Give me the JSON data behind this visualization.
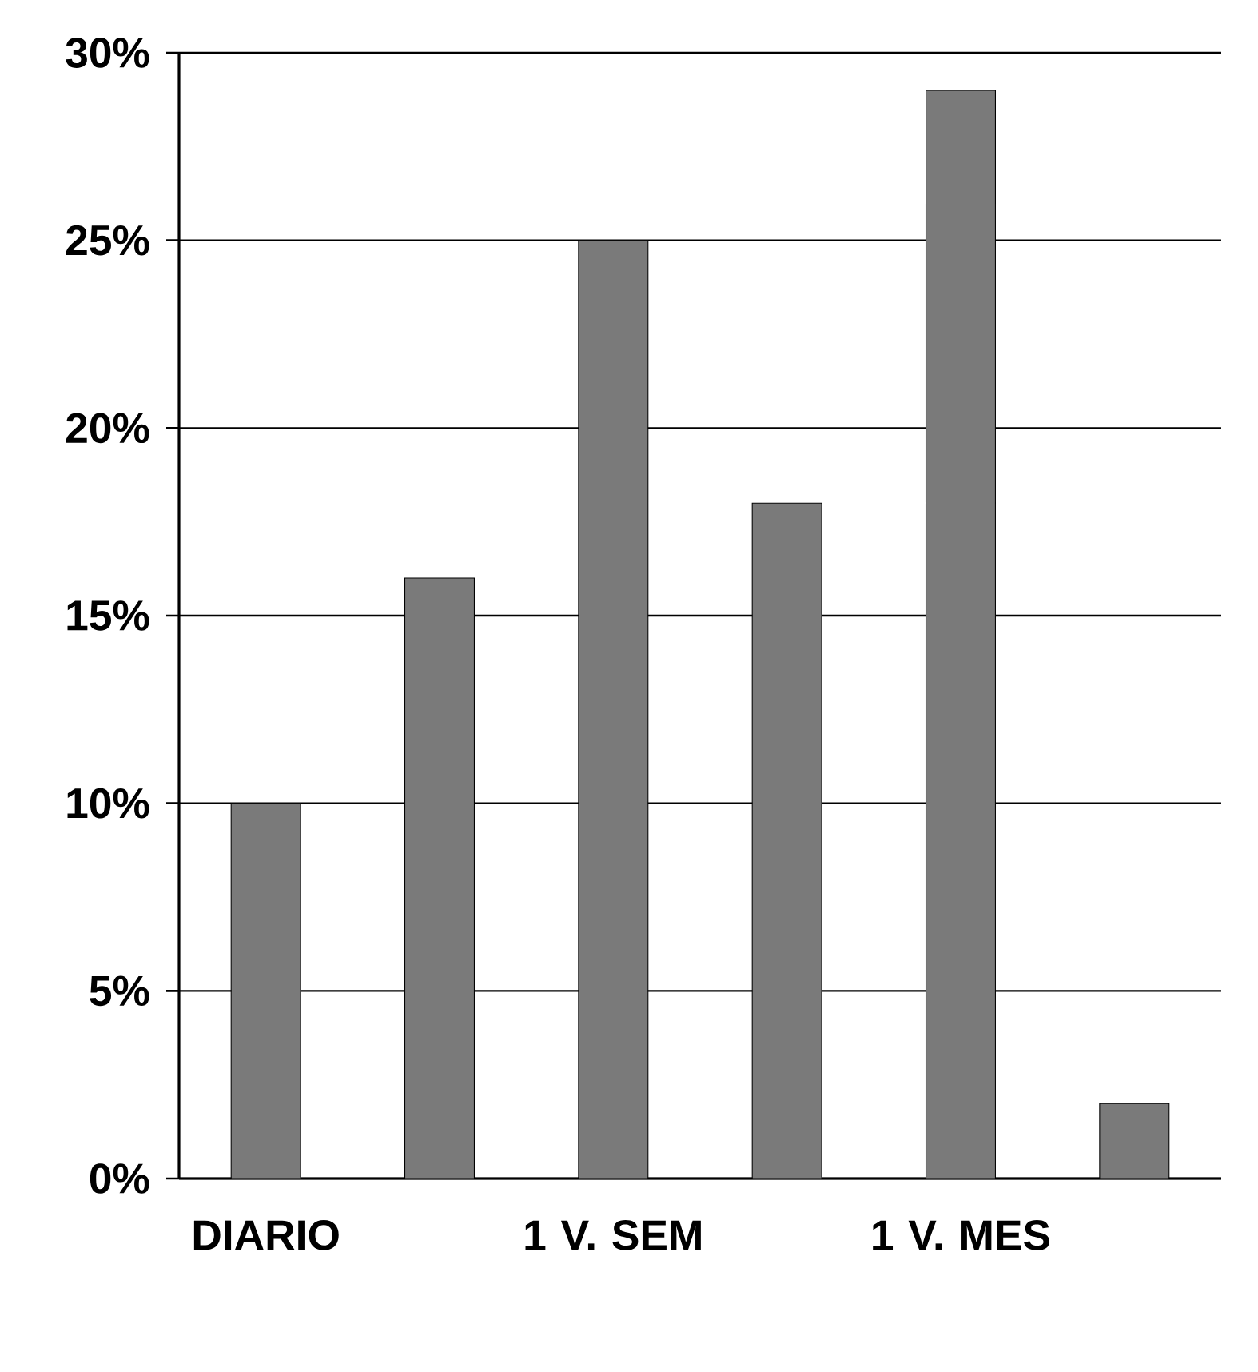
{
  "chart_data": {
    "type": "bar",
    "categories": [
      "DIARIO",
      null,
      "1 V. SEM",
      null,
      "1 V. MES",
      null
    ],
    "values": [
      10,
      16,
      25,
      18,
      29,
      2
    ],
    "color": "#7a7a7a",
    "ylim": [
      0,
      30
    ],
    "yticks": [
      {
        "value": 0,
        "label": "0%"
      },
      {
        "value": 5,
        "label": "5%"
      },
      {
        "value": 10,
        "label": "10%"
      },
      {
        "value": 15,
        "label": "15%"
      },
      {
        "value": 20,
        "label": "20%"
      },
      {
        "value": 25,
        "label": "25%"
      },
      {
        "value": 30,
        "label": "30%"
      }
    ],
    "grid": "y"
  }
}
